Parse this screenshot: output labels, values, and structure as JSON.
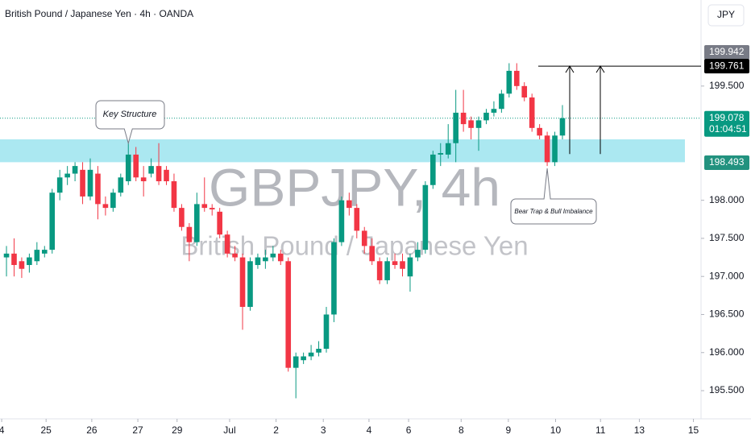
{
  "header": {
    "title": "British Pound / Japanese Yen · 4h · OANDA",
    "currency": "JPY"
  },
  "chart_data": {
    "type": "candlestick",
    "watermark": "GBPJPY, 4h",
    "watermark_subtitle": "British Pound / Japanese Yen",
    "open": [
      197.25,
      197.3,
      197.2,
      197.15,
      197.2,
      197.3,
      197.35,
      198.1,
      198.3,
      198.35,
      198.4,
      198.05,
      198.35,
      197.95,
      197.9,
      198.1,
      198.25,
      198.6,
      198.3,
      198.35,
      198.45,
      198.4,
      198.25,
      197.9,
      197.65,
      197.45,
      197.95,
      197.9,
      197.85,
      197.55,
      197.3,
      197.25,
      196.6,
      197.15,
      197.2,
      197.25,
      197.3,
      197.2,
      195.8,
      195.9,
      195.95,
      196.0,
      196.05,
      196.5,
      197.45,
      198.0,
      197.9,
      197.6,
      197.4,
      197.2,
      196.95,
      197.2,
      197.2,
      197.0,
      197.25,
      197.35,
      198.2,
      198.6,
      198.6,
      198.75,
      199.15,
      199.05,
      198.95,
      199.05,
      199.15,
      199.2,
      199.4,
      199.7,
      199.5,
      199.35,
      198.95,
      198.85,
      198.5,
      198.85
    ],
    "high": [
      197.4,
      197.5,
      197.25,
      197.3,
      197.45,
      197.4,
      198.15,
      198.4,
      198.45,
      198.5,
      198.5,
      198.55,
      198.45,
      198.05,
      198.15,
      198.35,
      198.75,
      198.7,
      198.45,
      198.55,
      198.75,
      198.45,
      198.35,
      197.95,
      197.7,
      198.1,
      198.3,
      197.95,
      197.9,
      197.6,
      197.4,
      197.3,
      197.25,
      197.3,
      197.35,
      197.4,
      197.35,
      197.25,
      196.0,
      196.0,
      196.1,
      196.15,
      196.6,
      197.5,
      198.05,
      198.1,
      197.95,
      197.65,
      197.5,
      197.25,
      197.25,
      197.3,
      197.3,
      197.3,
      197.45,
      198.25,
      198.65,
      198.75,
      199.0,
      199.45,
      199.45,
      199.1,
      199.1,
      199.2,
      199.3,
      199.45,
      199.8,
      199.8,
      199.55,
      199.4,
      199.0,
      198.9,
      198.9,
      199.25
    ],
    "low": [
      197.0,
      197.0,
      196.98,
      197.05,
      197.15,
      197.25,
      197.3,
      198.0,
      198.2,
      198.25,
      197.95,
      198.0,
      197.75,
      197.8,
      197.85,
      198.05,
      198.2,
      198.25,
      198.05,
      198.3,
      198.2,
      198.2,
      197.85,
      197.6,
      197.2,
      197.4,
      197.85,
      197.8,
      197.5,
      197.25,
      197.2,
      196.3,
      196.55,
      197.1,
      197.1,
      197.2,
      197.15,
      195.75,
      195.4,
      195.85,
      195.9,
      195.95,
      196.0,
      196.4,
      197.4,
      197.8,
      197.5,
      197.3,
      197.15,
      196.9,
      196.9,
      197.1,
      197.0,
      196.8,
      197.2,
      197.3,
      198.15,
      198.45,
      198.55,
      198.5,
      198.9,
      198.8,
      198.65,
      199.0,
      199.1,
      199.15,
      199.35,
      199.45,
      199.3,
      198.9,
      198.8,
      198.45,
      198.45,
      198.8
    ],
    "close": [
      197.3,
      197.15,
      197.1,
      197.25,
      197.35,
      197.35,
      198.1,
      198.3,
      198.35,
      198.45,
      198.05,
      198.4,
      197.95,
      197.9,
      198.1,
      198.3,
      198.6,
      198.3,
      198.25,
      198.45,
      198.25,
      198.25,
      197.9,
      197.65,
      197.45,
      197.95,
      197.9,
      197.88,
      197.55,
      197.3,
      197.25,
      196.6,
      197.2,
      197.25,
      197.25,
      197.3,
      197.2,
      195.8,
      195.95,
      195.95,
      196.0,
      196.05,
      196.5,
      197.45,
      198.0,
      197.9,
      197.6,
      197.4,
      197.2,
      196.95,
      197.2,
      197.15,
      197.1,
      197.25,
      197.35,
      198.2,
      198.6,
      198.62,
      198.75,
      199.15,
      199.0,
      198.95,
      199.05,
      199.15,
      199.2,
      199.4,
      199.7,
      199.5,
      199.35,
      198.95,
      198.85,
      198.5,
      198.85,
      199.078
    ],
    "up_color": "#089981",
    "down_color": "#f23645",
    "ylim": [
      195.13,
      200.63
    ],
    "yticks": [
      {
        "value": 195.5,
        "label": "195.500"
      },
      {
        "value": 196,
        "label": "196.000"
      },
      {
        "value": 196.5,
        "label": "196.500"
      },
      {
        "value": 197,
        "label": "197.000"
      },
      {
        "value": 197.5,
        "label": "197.500"
      },
      {
        "value": 198,
        "label": "198.000"
      },
      {
        "value": 199.5,
        "label": "199.500"
      }
    ],
    "xlim": [
      -0.85,
      91.2
    ],
    "xticks": [
      {
        "value": -0.63,
        "label": "4"
      },
      {
        "value": 5.2,
        "label": "25"
      },
      {
        "value": 11.2,
        "label": "26"
      },
      {
        "value": 17.25,
        "label": "27"
      },
      {
        "value": 22.4,
        "label": "29"
      },
      {
        "value": 29.3,
        "label": "Jul"
      },
      {
        "value": 35.4,
        "label": "2"
      },
      {
        "value": 41.6,
        "label": "3"
      },
      {
        "value": 47.6,
        "label": "4"
      },
      {
        "value": 52.8,
        "label": "6"
      },
      {
        "value": 59.7,
        "label": "8"
      },
      {
        "value": 65.9,
        "label": "9"
      },
      {
        "value": 72.1,
        "label": "10"
      },
      {
        "value": 78.0,
        "label": "11"
      },
      {
        "value": 83.1,
        "label": "13"
      },
      {
        "value": 90.2,
        "label": "15"
      }
    ],
    "zone": {
      "low": 198.5,
      "high": 198.8,
      "color": "#a6e7f0"
    },
    "target": 199.761,
    "price_tags": [
      {
        "value": 199.942,
        "color": "#787b86"
      },
      {
        "value": 199.761,
        "color": "#000000"
      },
      {
        "value": 199.078,
        "color": "#089981"
      },
      {
        "value": 198.493,
        "color": "#22927f"
      }
    ],
    "countdown": "01:04:51",
    "annotations": [
      "Key Structure",
      "Bear Trap & Bull Imbalance"
    ]
  }
}
